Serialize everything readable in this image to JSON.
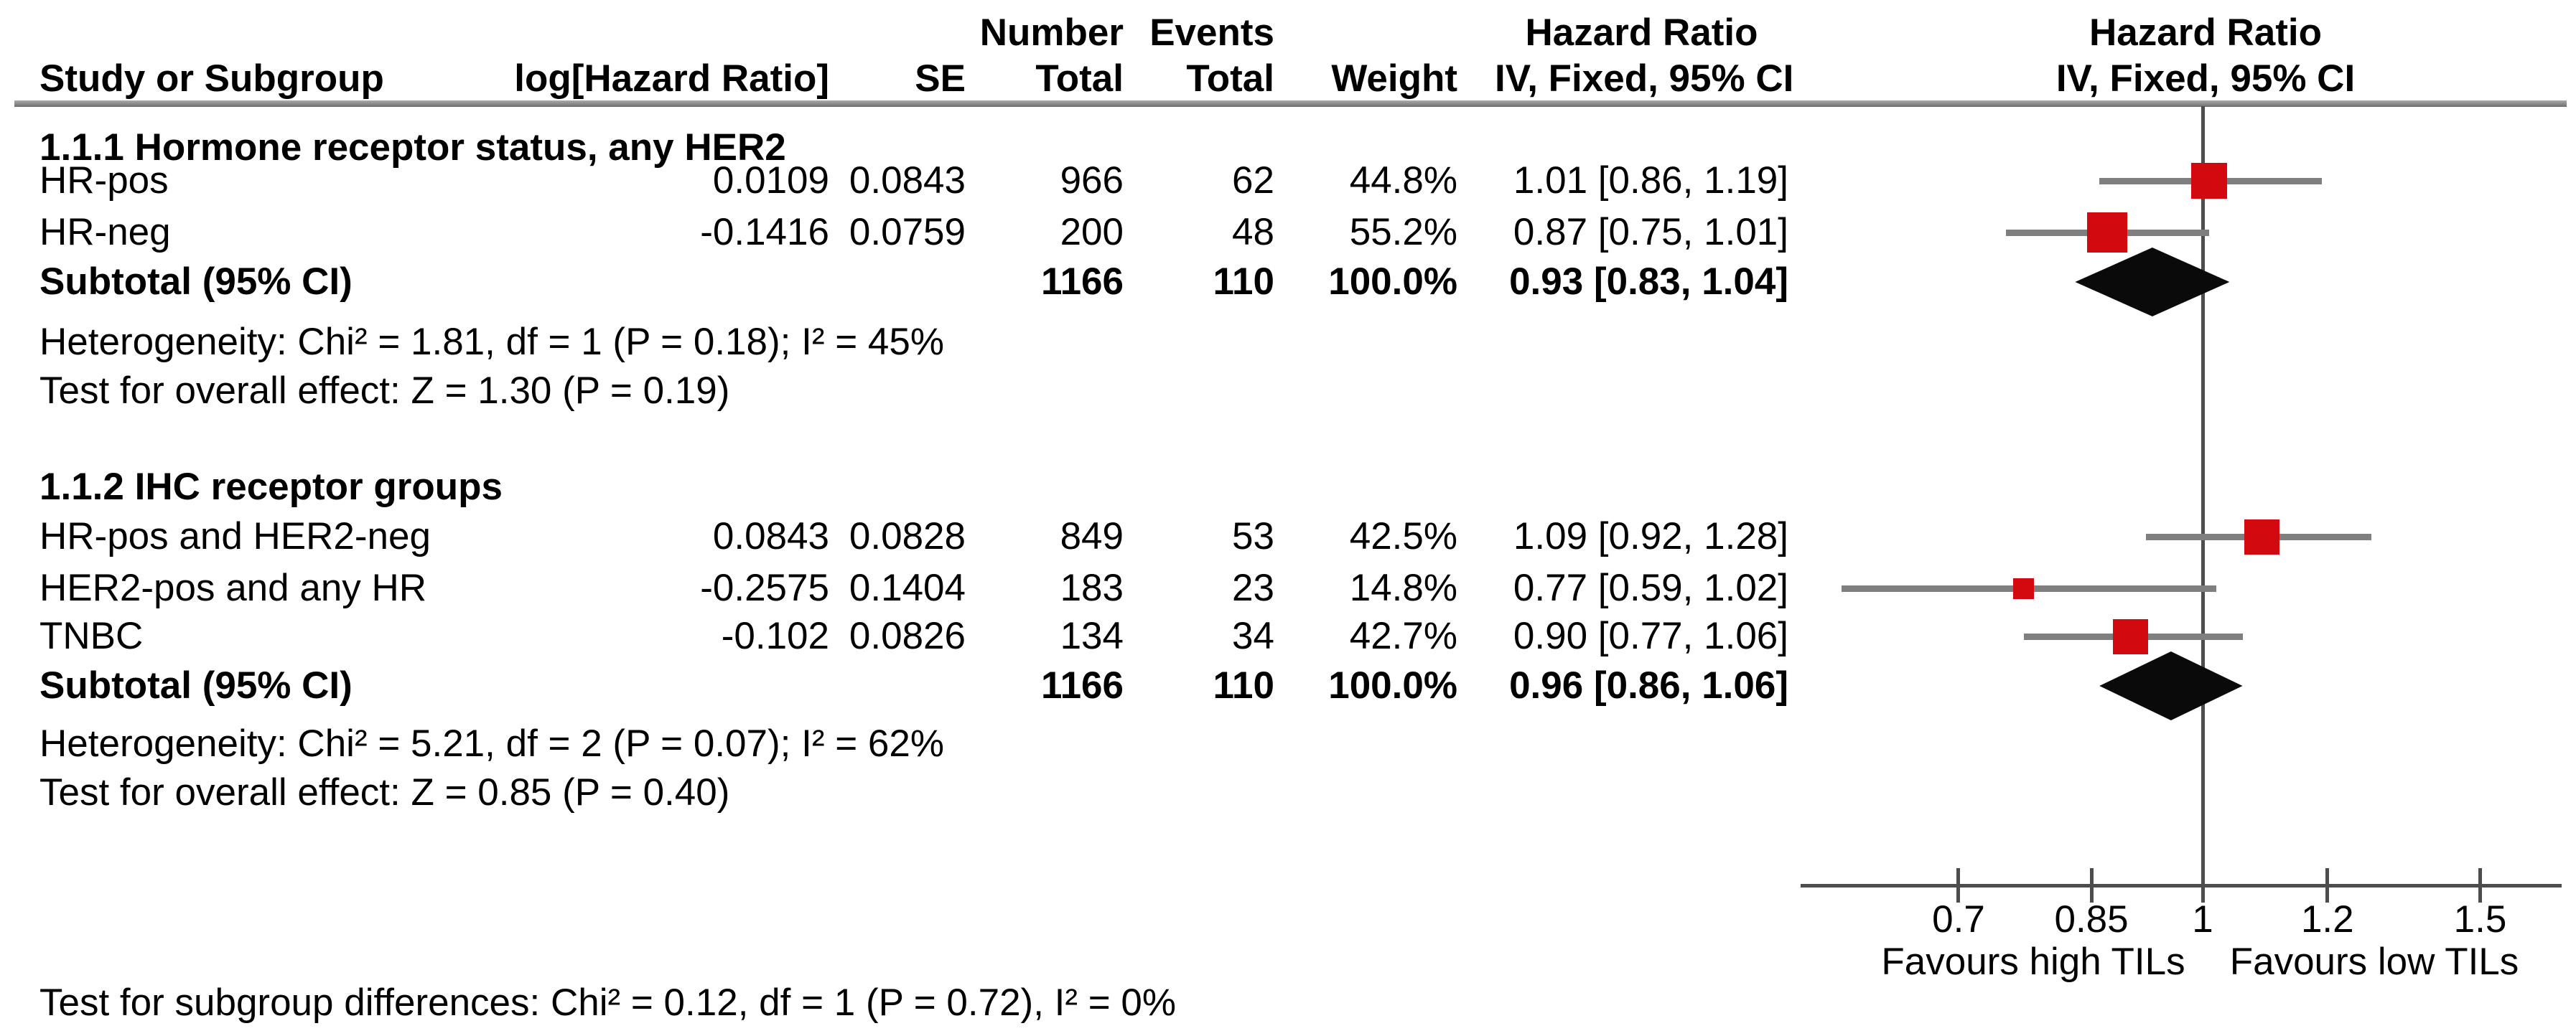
{
  "header": {
    "number": "Number",
    "events": "Events",
    "hazard_ratio_title": "Hazard Ratio",
    "study_or_subgroup": "Study or Subgroup",
    "log_hazard_ratio": "log[Hazard Ratio]",
    "se": "SE",
    "total": "Total",
    "total2": "Total",
    "weight": "Weight",
    "method": "IV, Fixed, 95% CI",
    "plot_hazard_ratio_title": "Hazard Ratio",
    "plot_method": "IV, Fixed, 95% CI"
  },
  "sections": [
    {
      "title": "1.1.1 Hormone receptor status, any HER2",
      "studies": [
        {
          "name": "HR-pos",
          "log_hr": "0.0109",
          "se": "0.0843",
          "total": "966",
          "events": "62",
          "weight": "44.8%",
          "hr_ci": "1.01 [0.86, 1.19]"
        },
        {
          "name": "HR-neg",
          "log_hr": "-0.1416",
          "se": "0.0759",
          "total": "200",
          "events": "48",
          "weight": "55.2%",
          "hr_ci": "0.87 [0.75, 1.01]"
        }
      ],
      "subtotal": {
        "label": "Subtotal (95% CI)",
        "total": "1166",
        "events": "110",
        "weight": "100.0%",
        "hr_ci": "0.93 [0.83, 1.04]"
      },
      "heterogeneity": "Heterogeneity: Chi² = 1.81, df = 1 (P = 0.18); I² = 45%",
      "overall_effect": "Test for overall effect: Z = 1.30 (P = 0.19)"
    },
    {
      "title": "1.1.2 IHC receptor groups",
      "studies": [
        {
          "name": "HR-pos and HER2-neg",
          "log_hr": "0.0843",
          "se": "0.0828",
          "total": "849",
          "events": "53",
          "weight": "42.5%",
          "hr_ci": "1.09 [0.92, 1.28]"
        },
        {
          "name": "HER2-pos and any HR",
          "log_hr": "-0.2575",
          "se": "0.1404",
          "total": "183",
          "events": "23",
          "weight": "14.8%",
          "hr_ci": "0.77 [0.59, 1.02]"
        },
        {
          "name": "TNBC",
          "log_hr": "-0.102",
          "se": "0.0826",
          "total": "134",
          "events": "34",
          "weight": "42.7%",
          "hr_ci": "0.90 [0.77, 1.06]"
        }
      ],
      "subtotal": {
        "label": "Subtotal (95% CI)",
        "total": "1166",
        "events": "110",
        "weight": "100.0%",
        "hr_ci": "0.96 [0.86, 1.06]"
      },
      "heterogeneity": "Heterogeneity: Chi² = 5.21, df = 2 (P = 0.07); I² = 62%",
      "overall_effect": "Test for overall effect: Z = 0.85 (P = 0.40)"
    }
  ],
  "footer": {
    "subgroup_test": "Test for subgroup differences: Chi² = 0.12, df = 1 (P = 0.72), I² = 0%"
  },
  "colors": {
    "marker_red": "#d20a10",
    "diamond_black": "#0a0a0a",
    "line_gray": "#7f7f7f",
    "axis_gray": "#4d4d4d"
  },
  "chart_data": {
    "type": "scatter",
    "subtype": "forest-plot",
    "title": "Hazard Ratio",
    "model": "IV, Fixed, 95% CI",
    "scale": "log10",
    "null_line": 1,
    "axis_ticks": [
      0.7,
      0.85,
      1,
      1.2,
      1.5
    ],
    "axis_range_displayed": [
      0.56,
      1.69
    ],
    "favours_left": "Favours high TILs",
    "favours_right": "Favours low TILs",
    "rows": [
      {
        "group": "1.1.1 Hormone receptor status, any HER2",
        "label": "HR-pos",
        "kind": "study",
        "hr": 1.01,
        "ci_low": 0.86,
        "ci_high": 1.19,
        "weight_pct": 44.8
      },
      {
        "group": "1.1.1 Hormone receptor status, any HER2",
        "label": "HR-neg",
        "kind": "study",
        "hr": 0.87,
        "ci_low": 0.75,
        "ci_high": 1.01,
        "weight_pct": 55.2
      },
      {
        "group": "1.1.1 Hormone receptor status, any HER2",
        "label": "Subtotal (95% CI)",
        "kind": "diamond",
        "hr": 0.93,
        "ci_low": 0.83,
        "ci_high": 1.04,
        "weight_pct": 100.0
      },
      {
        "group": "1.1.2 IHC receptor groups",
        "label": "HR-pos and HER2-neg",
        "kind": "study",
        "hr": 1.09,
        "ci_low": 0.92,
        "ci_high": 1.28,
        "weight_pct": 42.5
      },
      {
        "group": "1.1.2 IHC receptor groups",
        "label": "HER2-pos and any HR",
        "kind": "study",
        "hr": 0.77,
        "ci_low": 0.59,
        "ci_high": 1.02,
        "weight_pct": 14.8
      },
      {
        "group": "1.1.2 IHC receptor groups",
        "label": "TNBC",
        "kind": "study",
        "hr": 0.9,
        "ci_low": 0.77,
        "ci_high": 1.06,
        "weight_pct": 42.7
      },
      {
        "group": "1.1.2 IHC receptor groups",
        "label": "Subtotal (95% CI)",
        "kind": "diamond",
        "hr": 0.96,
        "ci_low": 0.86,
        "ci_high": 1.06,
        "weight_pct": 100.0
      }
    ]
  }
}
